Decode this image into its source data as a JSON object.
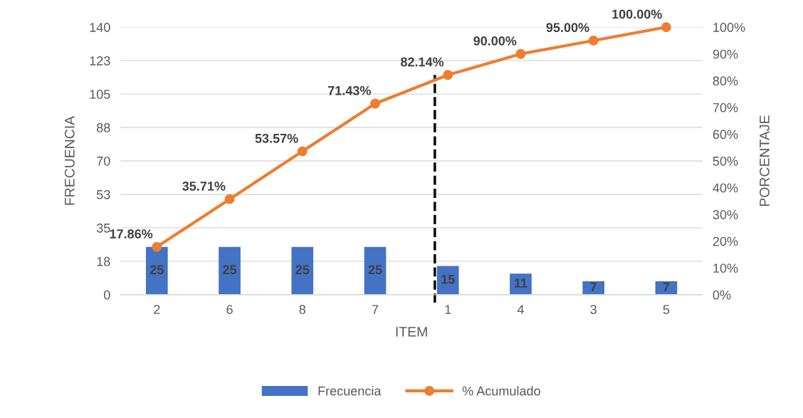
{
  "chart_data": {
    "type": "bar",
    "xlabel": "ITEM",
    "ylabel": "FRECUENCIA",
    "y2label": "PORCENTAJE",
    "categories": [
      "2",
      "6",
      "8",
      "7",
      "1",
      "4",
      "3",
      "5"
    ],
    "series": [
      {
        "name": "Frecuencia",
        "color": "#4472c4",
        "values": [
          25,
          25,
          25,
          25,
          15,
          11,
          7,
          7
        ],
        "data_labels": true
      },
      {
        "name": "% Acumulado",
        "type": "line",
        "axis": "y2",
        "color": "#ed7d31",
        "marker": "circle",
        "values": [
          17.86,
          35.71,
          53.57,
          71.43,
          82.14,
          90.0,
          95.0,
          100.0
        ],
        "value_labels": [
          "17.86%",
          "35.71%",
          "53.57%",
          "71.43%",
          "82.14%",
          "90.00%",
          "95.00%",
          "100.00%"
        ]
      }
    ],
    "ylim": [
      0,
      140
    ],
    "yticks": [
      0,
      {
        "value": 17.5,
        "label": "18"
      },
      35,
      {
        "value": 52.5,
        "label": "53"
      },
      70,
      {
        "value": 87.5,
        "label": "88"
      },
      105,
      {
        "value": 122.5,
        "label": "123"
      },
      140
    ],
    "y2lim": [
      0,
      100
    ],
    "y2ticks": [
      {
        "value": 0,
        "label": "0%"
      },
      {
        "value": 10,
        "label": "10%"
      },
      {
        "value": 20,
        "label": "20%"
      },
      {
        "value": 30,
        "label": "30%"
      },
      {
        "value": 40,
        "label": "40%"
      },
      {
        "value": 50,
        "label": "50%"
      },
      {
        "value": 60,
        "label": "60%"
      },
      {
        "value": 70,
        "label": "70%"
      },
      {
        "value": 80,
        "label": "80%"
      },
      {
        "value": 90,
        "label": "90%"
      },
      {
        "value": 100,
        "label": "100%"
      }
    ],
    "ref_lines": [
      {
        "axis": "x",
        "value": "1",
        "label": null,
        "color": "#000000",
        "line_style": "dashed"
      }
    ],
    "grid": "y",
    "legend": "bottom"
  }
}
